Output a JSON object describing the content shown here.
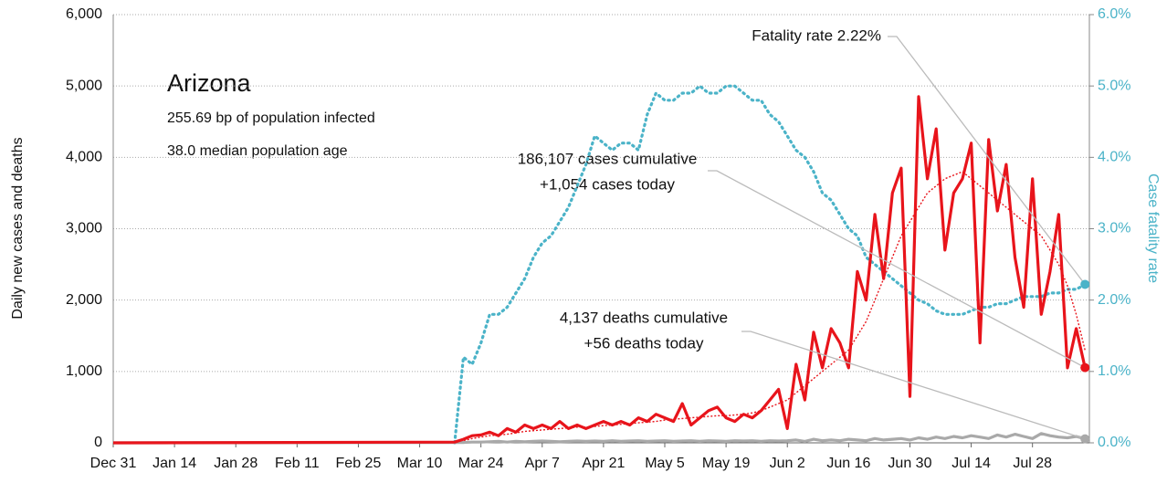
{
  "chart_data": {
    "type": "line",
    "title": "Arizona",
    "subtitle_lines": [
      "255.69 bp of population infected",
      "38.0 median population age"
    ],
    "ylabel": "Daily new cases and deaths",
    "y2label": "Case fatality rate",
    "annotations": {
      "cases": [
        "186,107 cases cumulative",
        "+1,054 cases today"
      ],
      "deaths": [
        "4,137 deaths cumulative",
        "+56 deaths today"
      ],
      "fatality": [
        "Fatality rate 2.22%"
      ]
    },
    "xlim": [
      0,
      223
    ],
    "xticks": [
      {
        "value": 0,
        "label": "Dec 31"
      },
      {
        "value": 14,
        "label": "Jan 14"
      },
      {
        "value": 28,
        "label": "Jan 28"
      },
      {
        "value": 42,
        "label": "Feb 11"
      },
      {
        "value": 56,
        "label": "Feb 25"
      },
      {
        "value": 70,
        "label": "Mar 10"
      },
      {
        "value": 84,
        "label": "Mar 24"
      },
      {
        "value": 98,
        "label": "Apr 7"
      },
      {
        "value": 112,
        "label": "Apr 21"
      },
      {
        "value": 126,
        "label": "May 5"
      },
      {
        "value": 140,
        "label": "May 19"
      },
      {
        "value": 154,
        "label": "Jun 2"
      },
      {
        "value": 168,
        "label": "Jun 16"
      },
      {
        "value": 182,
        "label": "Jun 30"
      },
      {
        "value": 196,
        "label": "Jul 14"
      },
      {
        "value": 210,
        "label": "Jul 28"
      }
    ],
    "ylim": [
      0,
      6000
    ],
    "yticks": [
      0,
      {
        "value": 1000,
        "label": "1,000"
      },
      {
        "value": 2000,
        "label": "2,000"
      },
      {
        "value": 3000,
        "label": "3,000"
      },
      {
        "value": 4000,
        "label": "4,000"
      },
      {
        "value": 5000,
        "label": "5,000"
      },
      {
        "value": 6000,
        "label": "6,000"
      }
    ],
    "y2lim": [
      0,
      6
    ],
    "y2ticks": [
      {
        "value": 0,
        "label": "0.0%"
      },
      {
        "value": 1,
        "label": "1.0%"
      },
      {
        "value": 2,
        "label": "2.0%"
      },
      {
        "value": 3,
        "label": "3.0%"
      },
      {
        "value": 4,
        "label": "4.0%"
      },
      {
        "value": 5,
        "label": "5.0%"
      },
      {
        "value": 6,
        "label": "6.0%"
      }
    ],
    "grid": true,
    "x": [
      0,
      78,
      80,
      82,
      84,
      86,
      88,
      90,
      92,
      94,
      96,
      98,
      100,
      102,
      104,
      106,
      108,
      110,
      112,
      114,
      116,
      118,
      120,
      122,
      124,
      126,
      128,
      130,
      132,
      134,
      136,
      138,
      140,
      142,
      144,
      146,
      148,
      150,
      152,
      154,
      156,
      158,
      160,
      162,
      164,
      166,
      168,
      170,
      172,
      174,
      176,
      178,
      180,
      182,
      184,
      186,
      188,
      190,
      192,
      194,
      196,
      198,
      200,
      202,
      204,
      206,
      208,
      210,
      212,
      214,
      216,
      218,
      220,
      222
    ],
    "series": [
      {
        "name": "Cases fatality rate",
        "color": "#4bb3c8",
        "style": "dotted",
        "axis": "y2",
        "endpoint": true,
        "values": [
          null,
          0,
          1.2,
          1.1,
          1.4,
          1.8,
          1.8,
          1.9,
          2.1,
          2.3,
          2.6,
          2.8,
          2.9,
          3.1,
          3.3,
          3.6,
          3.9,
          4.3,
          4.2,
          4.1,
          4.2,
          4.2,
          4.1,
          4.6,
          4.9,
          4.8,
          4.8,
          4.9,
          4.9,
          5.0,
          4.9,
          4.9,
          5.0,
          5.0,
          4.9,
          4.8,
          4.8,
          4.6,
          4.5,
          4.3,
          4.1,
          4.0,
          3.8,
          3.5,
          3.4,
          3.2,
          3.0,
          2.9,
          2.6,
          2.5,
          2.4,
          2.3,
          2.2,
          2.1,
          2.0,
          1.95,
          1.85,
          1.8,
          1.8,
          1.8,
          1.85,
          1.9,
          1.9,
          1.95,
          1.95,
          2.0,
          2.05,
          2.05,
          2.05,
          2.1,
          2.1,
          2.15,
          2.15,
          2.22
        ]
      },
      {
        "name": "Cases 7-day average",
        "color": "#e8141b",
        "style": "thin-dotted",
        "axis": "y",
        "endpoint": false,
        "values": [
          0,
          10,
          30,
          60,
          80,
          100,
          110,
          120,
          140,
          160,
          170,
          180,
          190,
          200,
          210,
          220,
          220,
          230,
          240,
          250,
          260,
          270,
          280,
          290,
          300,
          320,
          330,
          340,
          350,
          360,
          370,
          380,
          380,
          390,
          400,
          420,
          450,
          500,
          550,
          600,
          700,
          800,
          900,
          1000,
          1100,
          1200,
          1300,
          1500,
          1700,
          2000,
          2300,
          2600,
          2900,
          3100,
          3300,
          3500,
          3600,
          3700,
          3750,
          3800,
          3700,
          3600,
          3500,
          3400,
          3300,
          3200,
          3100,
          3000,
          2900,
          2700,
          2500,
          2200,
          1800,
          1300
        ]
      },
      {
        "name": "Daily new deaths",
        "color": "#a9a9a9",
        "style": "solid",
        "axis": "y",
        "endpoint": true,
        "values": [
          0,
          5,
          5,
          10,
          10,
          15,
          20,
          10,
          20,
          15,
          20,
          25,
          20,
          15,
          20,
          25,
          20,
          25,
          20,
          30,
          20,
          25,
          30,
          20,
          25,
          30,
          20,
          25,
          30,
          20,
          30,
          25,
          20,
          30,
          25,
          30,
          20,
          30,
          25,
          30,
          40,
          20,
          50,
          30,
          40,
          30,
          50,
          40,
          30,
          60,
          40,
          50,
          60,
          40,
          70,
          50,
          80,
          60,
          90,
          70,
          100,
          80,
          60,
          110,
          80,
          120,
          90,
          60,
          130,
          100,
          80,
          70,
          90,
          56
        ]
      },
      {
        "name": "Daily new cases",
        "color": "#e8141b",
        "style": "solid",
        "axis": "y",
        "endpoint": true,
        "values": [
          0,
          10,
          50,
          100,
          110,
          150,
          100,
          200,
          150,
          250,
          200,
          250,
          200,
          300,
          200,
          250,
          200,
          250,
          300,
          250,
          300,
          250,
          350,
          300,
          400,
          350,
          300,
          550,
          250,
          350,
          450,
          500,
          350,
          300,
          400,
          350,
          450,
          600,
          750,
          200,
          1100,
          600,
          1550,
          1050,
          1600,
          1400,
          1050,
          2400,
          2000,
          3200,
          2300,
          3500,
          3850,
          650,
          4850,
          3700,
          4400,
          2700,
          3500,
          3700,
          4200,
          1400,
          4250,
          3250,
          3900,
          2600,
          1900,
          3700,
          1800,
          2400,
          3200,
          1050,
          1600,
          1054
        ]
      }
    ]
  }
}
